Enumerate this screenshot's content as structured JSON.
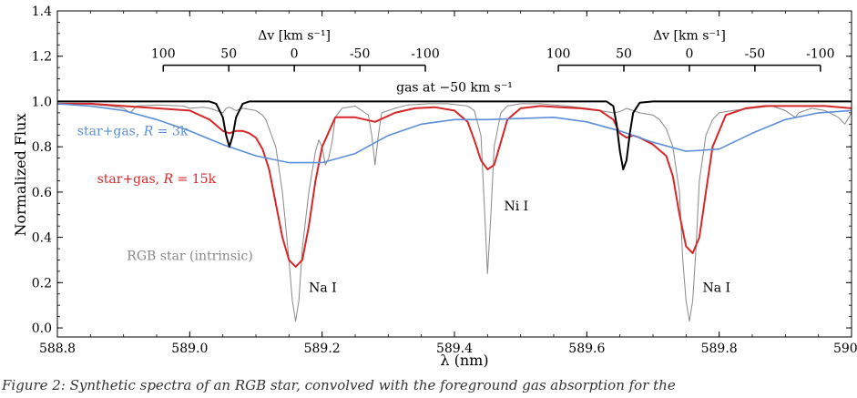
{
  "caption": "Figure 2: Synthetic spectra of an RGB star, convolved with the foreground gas absorption for the",
  "chart_data": {
    "type": "line",
    "xlabel": "λ (nm)",
    "ylabel": "Normalized Flux",
    "xlim": [
      588.8,
      590.0
    ],
    "ylim": [
      -0.04,
      1.4
    ],
    "x_ticks": [
      588.8,
      589.0,
      589.2,
      589.4,
      589.6,
      589.8,
      590.0
    ],
    "x_tick_labels": [
      "588.8",
      "589.0",
      "589.2",
      "589.4",
      "589.6",
      "589.8",
      "590.0"
    ],
    "y_ticks": [
      0.0,
      0.2,
      0.4,
      0.6,
      0.8,
      1.0,
      1.2,
      1.4
    ],
    "y_tick_labels": [
      "0.0",
      "0.2",
      "0.4",
      "0.6",
      "0.8",
      "1.0",
      "1.2",
      "1.4"
    ],
    "grid": false,
    "legend": "none",
    "series": [
      {
        "name": "RGB star (intrinsic)",
        "color": "#888888",
        "x": [
          588.8,
          588.84,
          588.88,
          588.9,
          588.91,
          588.92,
          588.95,
          588.99,
          589.0,
          589.02,
          589.03,
          589.04,
          589.05,
          589.055,
          589.06,
          589.07,
          589.08,
          589.1,
          589.11,
          589.115,
          589.12,
          589.13,
          589.14,
          589.15,
          589.155,
          589.16,
          589.165,
          589.17,
          589.18,
          589.19,
          589.195,
          589.2,
          589.205,
          589.21,
          589.215,
          589.22,
          589.23,
          589.25,
          589.27,
          589.275,
          589.28,
          589.285,
          589.29,
          589.31,
          589.33,
          589.36,
          589.39,
          589.42,
          589.43,
          589.44,
          589.445,
          589.45,
          589.455,
          589.46,
          589.47,
          589.48,
          589.5,
          589.53,
          589.55,
          589.57,
          589.6,
          589.62,
          589.64,
          589.65,
          589.66,
          589.67,
          589.68,
          589.7,
          589.71,
          589.72,
          589.73,
          589.74,
          589.745,
          589.75,
          589.755,
          589.76,
          589.765,
          589.77,
          589.78,
          589.79,
          589.8,
          589.82,
          589.85,
          589.88,
          589.9,
          589.91,
          589.915,
          589.92,
          589.94,
          589.96,
          589.98,
          589.99,
          590.0
        ],
        "y": [
          0.99,
          0.99,
          0.98,
          0.97,
          0.95,
          0.98,
          0.985,
          0.98,
          0.97,
          0.975,
          0.97,
          0.96,
          0.95,
          0.97,
          0.975,
          0.96,
          0.97,
          0.96,
          0.94,
          0.92,
          0.88,
          0.8,
          0.6,
          0.3,
          0.12,
          0.03,
          0.12,
          0.35,
          0.6,
          0.78,
          0.83,
          0.8,
          0.72,
          0.75,
          0.82,
          0.93,
          0.97,
          0.98,
          0.94,
          0.85,
          0.72,
          0.85,
          0.95,
          0.97,
          0.985,
          0.99,
          0.99,
          0.98,
          0.96,
          0.85,
          0.55,
          0.24,
          0.5,
          0.8,
          0.95,
          0.98,
          0.99,
          0.99,
          0.985,
          0.98,
          0.97,
          0.96,
          0.95,
          0.955,
          0.97,
          0.96,
          0.95,
          0.94,
          0.92,
          0.88,
          0.8,
          0.6,
          0.3,
          0.12,
          0.03,
          0.12,
          0.35,
          0.65,
          0.85,
          0.92,
          0.95,
          0.96,
          0.97,
          0.98,
          0.96,
          0.94,
          0.93,
          0.95,
          0.97,
          0.96,
          0.93,
          0.9,
          0.95
        ]
      },
      {
        "name": "star+gas, R = 15k",
        "name_prefix": "star+gas, ",
        "name_italic": "R",
        "name_suffix": " = 15k",
        "color": "#d62728",
        "x": [
          588.8,
          588.85,
          588.9,
          588.95,
          589.0,
          589.03,
          589.05,
          589.06,
          589.07,
          589.08,
          589.09,
          589.1,
          589.11,
          589.12,
          589.13,
          589.14,
          589.15,
          589.16,
          589.17,
          589.18,
          589.19,
          589.2,
          589.22,
          589.25,
          589.28,
          589.31,
          589.34,
          589.37,
          589.4,
          589.42,
          589.43,
          589.44,
          589.45,
          589.46,
          589.47,
          589.48,
          589.5,
          589.53,
          589.56,
          589.59,
          589.62,
          589.64,
          589.65,
          589.66,
          589.67,
          589.68,
          589.7,
          589.72,
          589.73,
          589.74,
          589.75,
          589.76,
          589.77,
          589.78,
          589.79,
          589.81,
          589.84,
          589.87,
          589.9,
          589.93,
          589.96,
          590.0
        ],
        "y": [
          0.99,
          0.99,
          0.98,
          0.97,
          0.96,
          0.92,
          0.87,
          0.86,
          0.87,
          0.87,
          0.86,
          0.84,
          0.79,
          0.7,
          0.55,
          0.4,
          0.3,
          0.27,
          0.3,
          0.45,
          0.65,
          0.8,
          0.93,
          0.93,
          0.91,
          0.95,
          0.97,
          0.975,
          0.96,
          0.91,
          0.83,
          0.74,
          0.7,
          0.72,
          0.82,
          0.92,
          0.97,
          0.98,
          0.975,
          0.97,
          0.96,
          0.92,
          0.86,
          0.84,
          0.85,
          0.84,
          0.81,
          0.76,
          0.67,
          0.5,
          0.36,
          0.33,
          0.4,
          0.6,
          0.8,
          0.94,
          0.97,
          0.98,
          0.98,
          0.98,
          0.98,
          0.97
        ]
      },
      {
        "name": "star+gas, R = 3k",
        "name_prefix": "star+gas, ",
        "name_italic": "R",
        "name_suffix": " = 3k",
        "color": "#5b8fd9",
        "x": [
          588.8,
          588.85,
          588.9,
          588.95,
          589.0,
          589.05,
          589.1,
          589.15,
          589.2,
          589.25,
          589.3,
          589.35,
          589.4,
          589.45,
          589.5,
          589.55,
          589.6,
          589.65,
          589.7,
          589.75,
          589.8,
          589.85,
          589.9,
          589.95,
          590.0
        ],
        "y": [
          0.99,
          0.98,
          0.96,
          0.92,
          0.87,
          0.81,
          0.76,
          0.73,
          0.73,
          0.77,
          0.85,
          0.9,
          0.92,
          0.92,
          0.925,
          0.93,
          0.91,
          0.87,
          0.82,
          0.78,
          0.79,
          0.86,
          0.92,
          0.95,
          0.96
        ]
      },
      {
        "name": "gas at −50 km s⁻¹",
        "color": "#000000",
        "x": [
          588.8,
          589.0,
          589.03,
          589.04,
          589.05,
          589.055,
          589.06,
          589.065,
          589.07,
          589.08,
          589.09,
          589.1,
          589.6,
          589.63,
          589.64,
          589.645,
          589.65,
          589.655,
          589.66,
          589.665,
          589.67,
          589.68,
          589.7,
          590.0
        ],
        "y": [
          1.0,
          1.0,
          1.0,
          0.99,
          0.93,
          0.85,
          0.8,
          0.85,
          0.93,
          0.99,
          1.0,
          1.0,
          1.0,
          1.0,
          0.98,
          0.9,
          0.78,
          0.7,
          0.74,
          0.86,
          0.95,
          0.995,
          1.0,
          1.0
        ]
      }
    ],
    "annotations": [
      {
        "text": "RGB star (intrinsic)",
        "color": "#888888",
        "x": 588.905,
        "y": 0.3
      },
      {
        "text": "Na I",
        "color": "#000000",
        "x": 589.18,
        "y": 0.16
      },
      {
        "text": "Ni I",
        "color": "#000000",
        "x": 589.475,
        "y": 0.52
      },
      {
        "text": "Na I",
        "color": "#000000",
        "x": 589.775,
        "y": 0.16
      },
      {
        "text": "gas at −50 km s⁻¹",
        "color": "#000000",
        "x": 589.4,
        "y": 1.045
      }
    ],
    "velocity_scales": [
      {
        "axis_label": "Δv [km s⁻¹]",
        "tick_values": [
          100,
          50,
          0,
          -50,
          -100
        ],
        "tick_labels": [
          "100",
          "50",
          "0",
          "-50",
          "-100"
        ],
        "lambda_range": [
          588.96,
          589.356
        ],
        "y": 1.16
      },
      {
        "axis_label": "Δv [km s⁻¹]",
        "tick_values": [
          100,
          50,
          0,
          -50,
          -100
        ],
        "tick_labels": [
          "100",
          "50",
          "0",
          "-50",
          "-100"
        ],
        "lambda_range": [
          589.557,
          589.953
        ],
        "y": 1.16
      }
    ]
  }
}
